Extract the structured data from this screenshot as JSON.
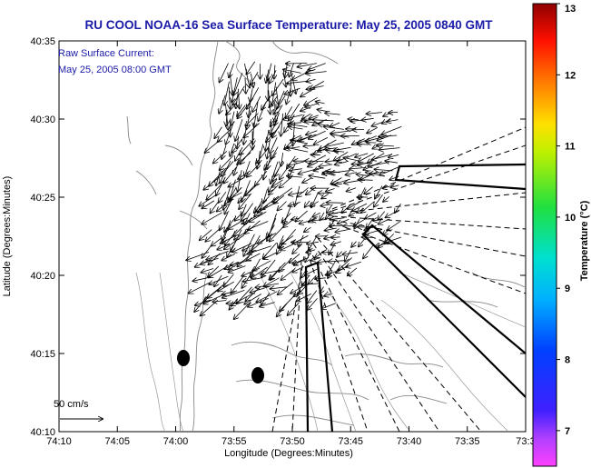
{
  "title": "RU COOL  NOAA-16  Sea Surface Temperature:  May 25, 2005 0840 GMT",
  "inset": {
    "line1": "Raw Surface Current:",
    "line2": "May 25, 2005 08:00 GMT"
  },
  "scale_label": "50 cm/s",
  "axes": {
    "xlabel": "Longitude (Degrees:Minutes)",
    "ylabel": "Latitude (Degrees:Minutes)",
    "x_ticks": [
      "74:10",
      "74:05",
      "74:00",
      "73:55",
      "73:50",
      "73:45",
      "73:40",
      "73:35",
      "73:3"
    ],
    "y_ticks": [
      "40:35",
      "40:30",
      "40:25",
      "40:20",
      "40:15",
      "40:10"
    ]
  },
  "colorbar": {
    "label": "Temperature (°C)",
    "ticks": [
      "13",
      "12",
      "11",
      "10",
      "9",
      "8",
      "7"
    ],
    "min": 6.5,
    "max": 13
  },
  "map_features": [
    "coastline",
    "bathymetry-contours",
    "surface-current-vectors",
    "survey-track-boxes",
    "buoy-markers"
  ]
}
